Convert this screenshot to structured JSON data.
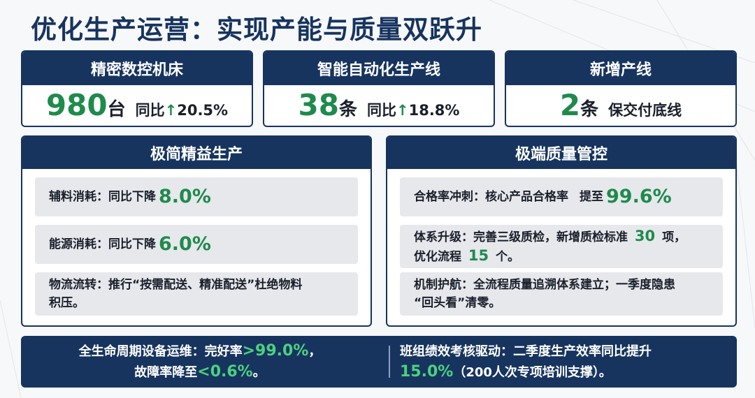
{
  "title": "优化生产运营：实现产能与质量双跃升",
  "colors": {
    "navy": "#17345f",
    "green": "#1f8a4c",
    "row_bg": "#e6e8ec"
  },
  "stats": [
    {
      "header": "精密数控机床",
      "value": "980",
      "unit": "台",
      "note": "同比",
      "arrow": "↑",
      "pct": "20.5%"
    },
    {
      "header": "智能自动化生产线",
      "value": "38",
      "unit": "条",
      "note": "同比",
      "arrow": "↑",
      "pct": "18.8%"
    },
    {
      "header": "新增产线",
      "value": "2",
      "unit": "条",
      "note": "保交付底线"
    }
  ],
  "lean": {
    "header": "极简精益生产",
    "aux": {
      "label": "辅料消耗：同比下降",
      "value": "8.0%"
    },
    "energy": {
      "label": "能源消耗：同比下降",
      "value": "6.0%"
    },
    "logistics": {
      "line1": "物流流转：推行“按需配送、精准配送”杜绝物料",
      "line2": "积压。"
    }
  },
  "quality": {
    "header": "极端质量管控",
    "pass": {
      "label": "合格率冲刺：核心产品合格率",
      "prefix": "提至",
      "value": "99.6%"
    },
    "system": {
      "text1": "体系升级：完善三级质检，新增质检标准",
      "num1": "30",
      "text2": "项，",
      "text3": "优化流程",
      "num2": "15",
      "text4": "个。"
    },
    "mechanism": {
      "line1": "机制护航：全流程质量追溯体系建立；一季度隐患",
      "line2": "“回头看”清零。"
    }
  },
  "footer": {
    "left": {
      "t1": "全生命周期设备运维：完好率",
      "v1": ">99.0%",
      "t2": "，",
      "t3": "故障率降至",
      "v2": "<0.6%",
      "t4": "。"
    },
    "right": {
      "t1": "班组绩效考核驱动：二季度生产效率同比提升",
      "v1": "15.0%",
      "t2": "（200人次专项培训支撑）。"
    }
  }
}
